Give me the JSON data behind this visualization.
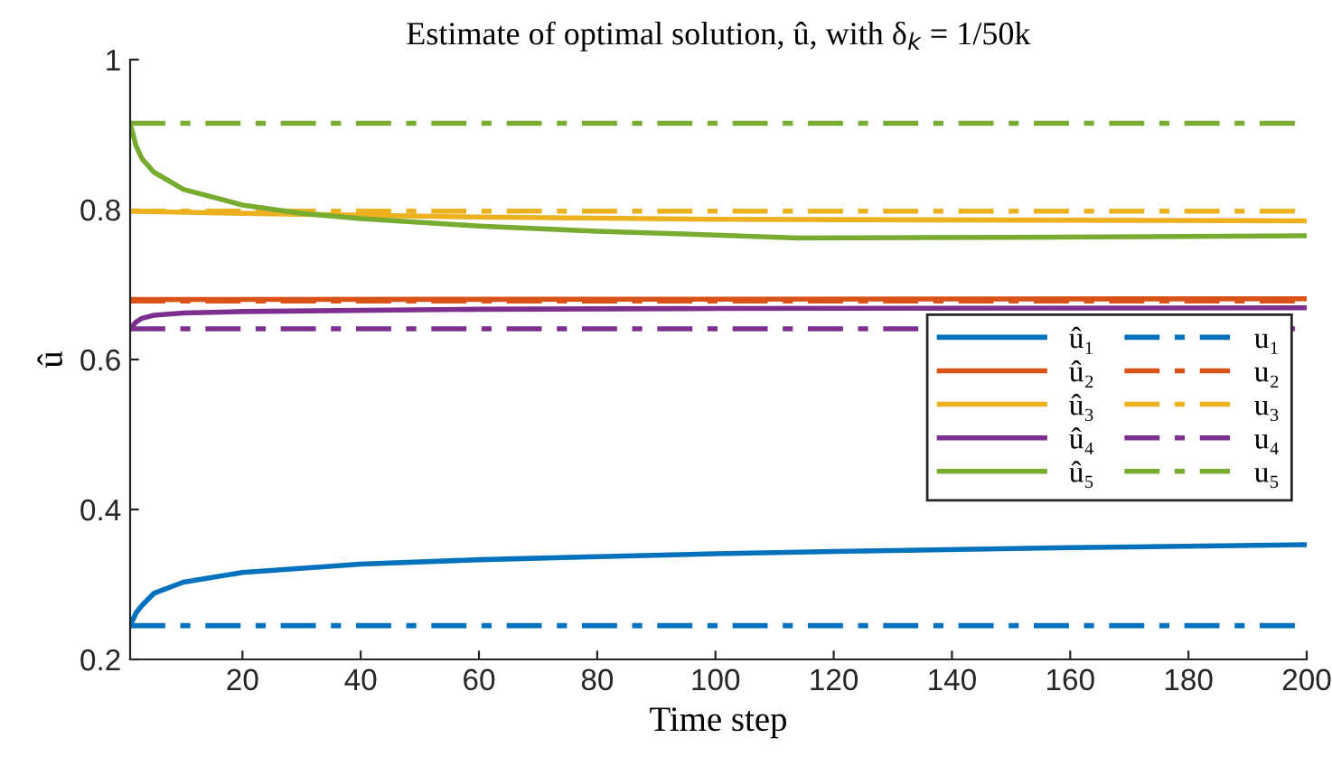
{
  "chart_data": {
    "type": "line",
    "title": "Estimate of optimal solution, û, with δ$_{k}$ = 1/50k",
    "xlabel": "Time step",
    "ylabel": "û",
    "xlim": [
      1,
      200
    ],
    "xticks": [
      20,
      40,
      60,
      80,
      100,
      120,
      140,
      160,
      180,
      200
    ],
    "ylim": [
      0.2,
      1
    ],
    "yticks": [
      0.2,
      0.4,
      0.6,
      0.8,
      1
    ],
    "grid": false,
    "legend": "right",
    "marker": "none",
    "series": [
      {
        "name": "û₁",
        "color": "#0072bd",
        "line_style": "solid",
        "x": [
          1,
          2,
          3,
          5,
          10,
          20,
          40,
          60,
          80,
          100,
          120,
          160,
          200
        ],
        "values": [
          0.245,
          0.262,
          0.272,
          0.288,
          0.303,
          0.316,
          0.327,
          0.333,
          0.337,
          0.341,
          0.344,
          0.349,
          0.353
        ]
      },
      {
        "name": "u₁",
        "color": "#0072bd",
        "line_style": "dashed",
        "x": [
          1,
          200
        ],
        "values": [
          0.245,
          0.245
        ]
      },
      {
        "name": "û₂",
        "color": "#d95319",
        "line_style": "solid",
        "x": [
          1,
          200
        ],
        "values": [
          0.68,
          0.681
        ]
      },
      {
        "name": "u₂",
        "color": "#d95319",
        "line_style": "dashed",
        "x": [
          1,
          200
        ],
        "values": [
          0.678,
          0.678
        ]
      },
      {
        "name": "û₃",
        "color": "#edb120",
        "line_style": "solid",
        "x": [
          1,
          20,
          60,
          100,
          200
        ],
        "values": [
          0.798,
          0.795,
          0.79,
          0.787,
          0.785
        ]
      },
      {
        "name": "u₃",
        "color": "#edb120",
        "line_style": "dashed",
        "x": [
          1,
          200
        ],
        "values": [
          0.798,
          0.798
        ]
      },
      {
        "name": "û₄",
        "color": "#7e2f8e",
        "line_style": "solid",
        "x": [
          1,
          2,
          3,
          5,
          10,
          20,
          60,
          100,
          200
        ],
        "values": [
          0.641,
          0.65,
          0.655,
          0.659,
          0.662,
          0.664,
          0.667,
          0.668,
          0.669
        ]
      },
      {
        "name": "u₄",
        "color": "#7e2f8e",
        "line_style": "dashed",
        "x": [
          1,
          200
        ],
        "values": [
          0.641,
          0.641
        ]
      },
      {
        "name": "û₅",
        "color": "#77ac30",
        "line_style": "solid",
        "x": [
          1,
          2,
          3,
          5,
          10,
          20,
          30,
          40,
          60,
          80,
          100,
          114,
          150,
          200
        ],
        "values": [
          0.915,
          0.885,
          0.868,
          0.85,
          0.827,
          0.806,
          0.795,
          0.788,
          0.778,
          0.771,
          0.766,
          0.762,
          0.763,
          0.765
        ]
      },
      {
        "name": "u₅",
        "color": "#77ac30",
        "line_style": "dashed",
        "x": [
          1,
          200
        ],
        "values": [
          0.915,
          0.915
        ]
      }
    ]
  }
}
